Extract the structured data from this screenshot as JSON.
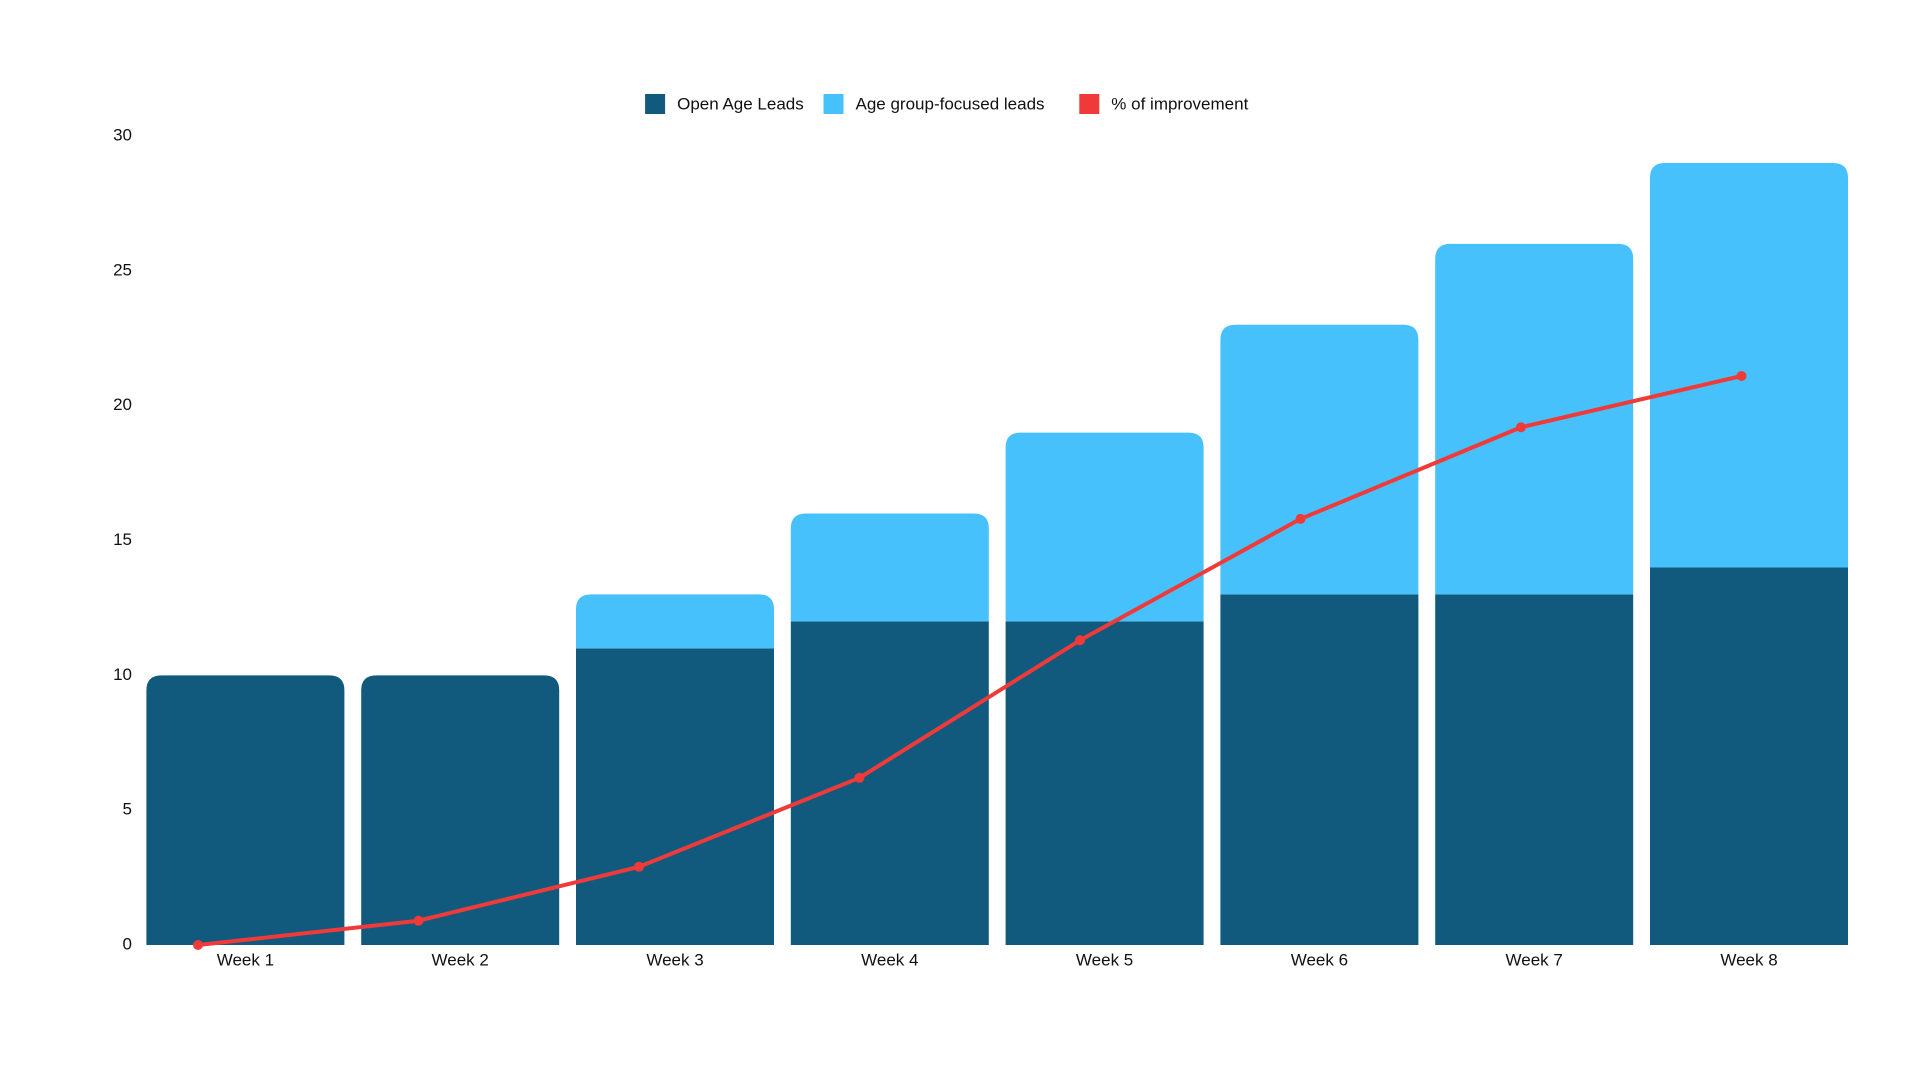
{
  "chart_data": {
    "type": "bar",
    "stacked": true,
    "categories": [
      "Week 1",
      "Week 2",
      "Week 3",
      "Week 4",
      "Week 5",
      "Week 6",
      "Week 7",
      "Week 8"
    ],
    "series": [
      {
        "name": "Open Age Leads",
        "color": "#115a7e",
        "values": [
          10,
          10,
          11,
          12,
          12,
          13,
          13,
          14
        ]
      },
      {
        "name": "Age group-focused leads",
        "color": "#47c1fb",
        "values": [
          0,
          0,
          2,
          4,
          7,
          10,
          13,
          15
        ]
      },
      {
        "name": "% of improvement",
        "color": "#f03a3a",
        "type": "line",
        "values": [
          0,
          0.9,
          2.9,
          6.2,
          11.3,
          15.8,
          19.2,
          21.1
        ]
      }
    ],
    "ylim": [
      0,
      30
    ],
    "yticks": [
      0,
      5,
      10,
      15,
      20,
      25,
      30
    ],
    "grid": false,
    "legend": "top"
  }
}
